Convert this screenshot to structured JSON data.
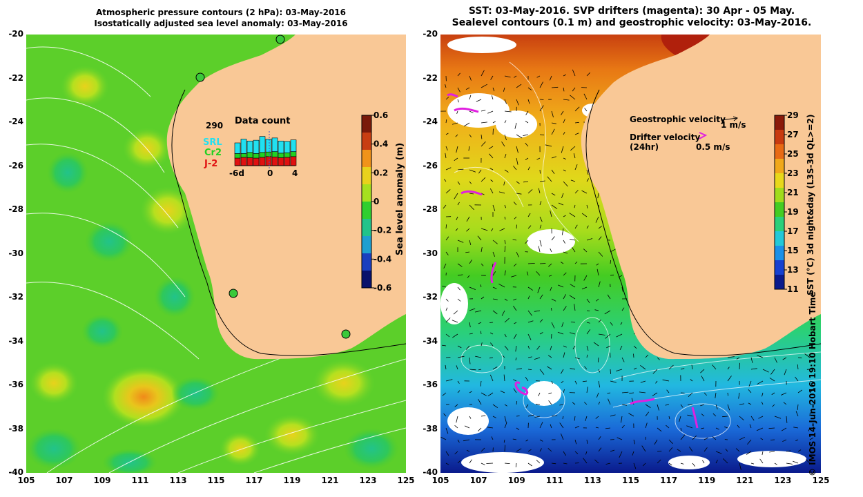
{
  "left_panel": {
    "title_line1": "Atmospheric pressure contours (2 hPa): 03-May-2016",
    "title_line2": "Isostatically adjusted sea level anomaly: 03-May-2016",
    "colorbar": {
      "label": "Sea level anomaly (m)",
      "ticks": [
        "0.6",
        "0.4",
        "0.2",
        "0",
        "-0.2",
        "-0.4",
        "-0.6"
      ],
      "colors": [
        "#08116b",
        "#1a3fbf",
        "#1f9fd0",
        "#22c38a",
        "#2fcf2f",
        "#a6e01f",
        "#e8d21c",
        "#f0931a",
        "#c83e12",
        "#7a1a0a"
      ]
    },
    "data_count": {
      "title": "Data count",
      "max_label": "290",
      "series": [
        {
          "name": "SRL",
          "color": "#22e0f0"
        },
        {
          "name": "Cr2",
          "color": "#22d022"
        },
        {
          "name": "J-2",
          "color": "#e01010"
        }
      ],
      "x_labels": [
        "-6d",
        "0",
        "4"
      ],
      "bars": [
        {
          "j2": 0.2,
          "cr2": 0.12,
          "srl": 0.28
        },
        {
          "j2": 0.22,
          "cr2": 0.1,
          "srl": 0.38
        },
        {
          "j2": 0.21,
          "cr2": 0.14,
          "srl": 0.3
        },
        {
          "j2": 0.2,
          "cr2": 0.12,
          "srl": 0.35
        },
        {
          "j2": 0.22,
          "cr2": 0.13,
          "srl": 0.42
        },
        {
          "j2": 0.24,
          "cr2": 0.12,
          "srl": 0.34
        },
        {
          "j2": 0.23,
          "cr2": 0.14,
          "srl": 0.36
        },
        {
          "j2": 0.21,
          "cr2": 0.12,
          "srl": 0.32
        },
        {
          "j2": 0.22,
          "cr2": 0.12,
          "srl": 0.3
        },
        {
          "j2": 0.24,
          "cr2": 0.13,
          "srl": 0.31
        }
      ]
    }
  },
  "right_panel": {
    "title_line1": "SST: 03-May-2016. SVP drifters (magenta): 30 Apr - 05 May.",
    "title_line2": "Sealevel contours (0.1 m) and geostrophic velocity: 03-May-2016.",
    "legend": {
      "geostrophic_label": "Geostrophic velocity",
      "geostrophic_scale": "1 m/s",
      "drifter_label": "Drifter velocity",
      "drifter_sub": "(24hr)",
      "drifter_scale": "0.5 m/s"
    },
    "colorbar": {
      "label": "SST (°C) 3d night&day (L3S-3d QL>=2)",
      "ticks": [
        "29",
        "27",
        "25",
        "23",
        "21",
        "19",
        "17",
        "15",
        "13",
        "11"
      ],
      "colors": [
        "#0a1a8c",
        "#1640d0",
        "#1a90e8",
        "#22c8d8",
        "#2ad07a",
        "#44cc22",
        "#a0dc1c",
        "#e8d81a",
        "#f0a81a",
        "#e86a14",
        "#c83a10",
        "#8a1a0a"
      ]
    }
  },
  "axes": {
    "latitudes": [
      "-20",
      "-22",
      "-24",
      "-26",
      "-28",
      "-30",
      "-32",
      "-34",
      "-36",
      "-38",
      "-40"
    ],
    "longitudes": [
      "105",
      "107",
      "109",
      "111",
      "113",
      "115",
      "117",
      "119",
      "121",
      "123",
      "125"
    ]
  },
  "copyright": "© IMOS 14-Jun-2016 19:10 Hobart Time",
  "land_color": "#f9c896"
}
